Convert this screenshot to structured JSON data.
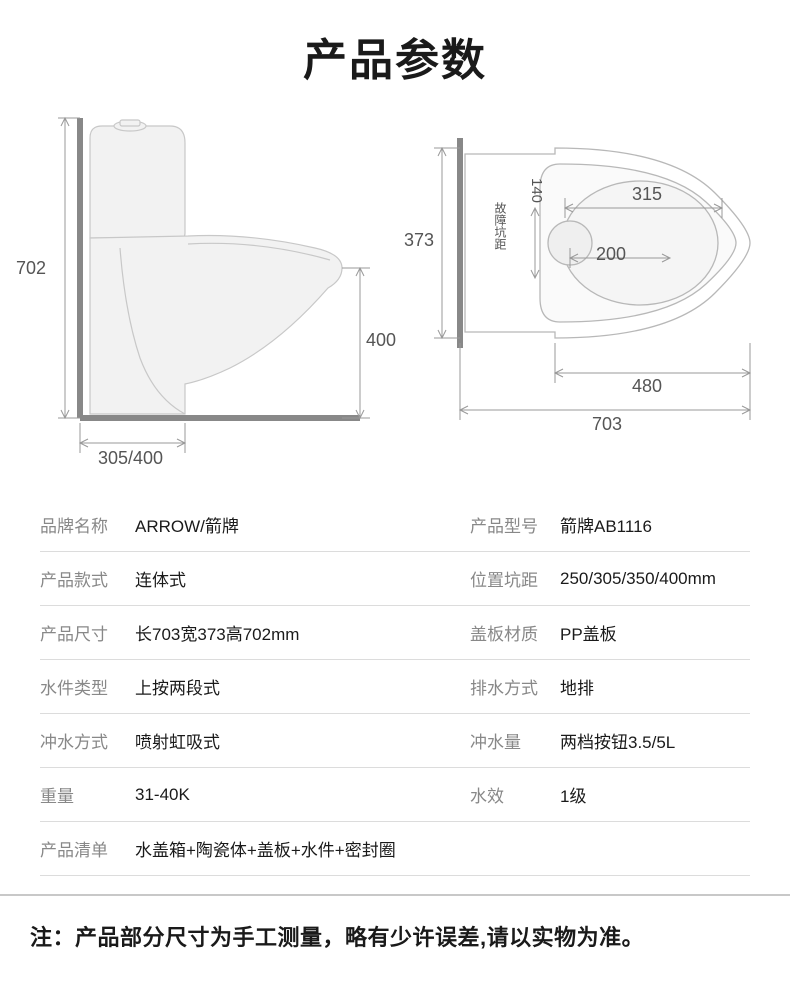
{
  "title": "产品参数",
  "side_view": {
    "height_label": "702",
    "seat_height_label": "400",
    "pit_label": "305/400"
  },
  "top_view": {
    "width_label": "373",
    "bowl_length_label": "480",
    "total_length_label": "703",
    "inner_diameter_label": "315",
    "drain_offset_label": "200",
    "drain_dim_label": "140",
    "drain_vertical_label": "故障坑距"
  },
  "dim_line_color": "#999999",
  "dim_text_color": "#555555",
  "toilet_fill": "#f5f5f5",
  "toilet_stroke": "#bbbbbb",
  "specs": [
    {
      "l1": "品牌名称",
      "v1": "ARROW/箭牌",
      "l2": "产品型号",
      "v2": "箭牌AB1116"
    },
    {
      "l1": "产品款式",
      "v1": "连体式",
      "l2": "位置坑距",
      "v2": "250/305/350/400mm"
    },
    {
      "l1": "产品尺寸",
      "v1": "长703宽373高702mm",
      "l2": "盖板材质",
      "v2": "PP盖板"
    },
    {
      "l1": "水件类型",
      "v1": "上按两段式",
      "l2": "排水方式",
      "v2": "地排"
    },
    {
      "l1": "冲水方式",
      "v1": "喷射虹吸式",
      "l2": "冲水量",
      "v2": "两档按钮3.5/5L"
    },
    {
      "l1": "重量",
      "v1": "31-40K",
      "l2": "水效",
      "v2": "1级"
    },
    {
      "l1": "产品清单",
      "v1": "水盖箱+陶瓷体+盖板+水件+密封圈",
      "l2": "",
      "v2": ""
    }
  ],
  "note_prefix": "注：",
  "note_text": "产品部分尺寸为手工测量，略有少许误差,请以实物为准。",
  "row_border_color": "#dcdcdc",
  "label_color": "#888888",
  "value_color": "#1a1a1a"
}
